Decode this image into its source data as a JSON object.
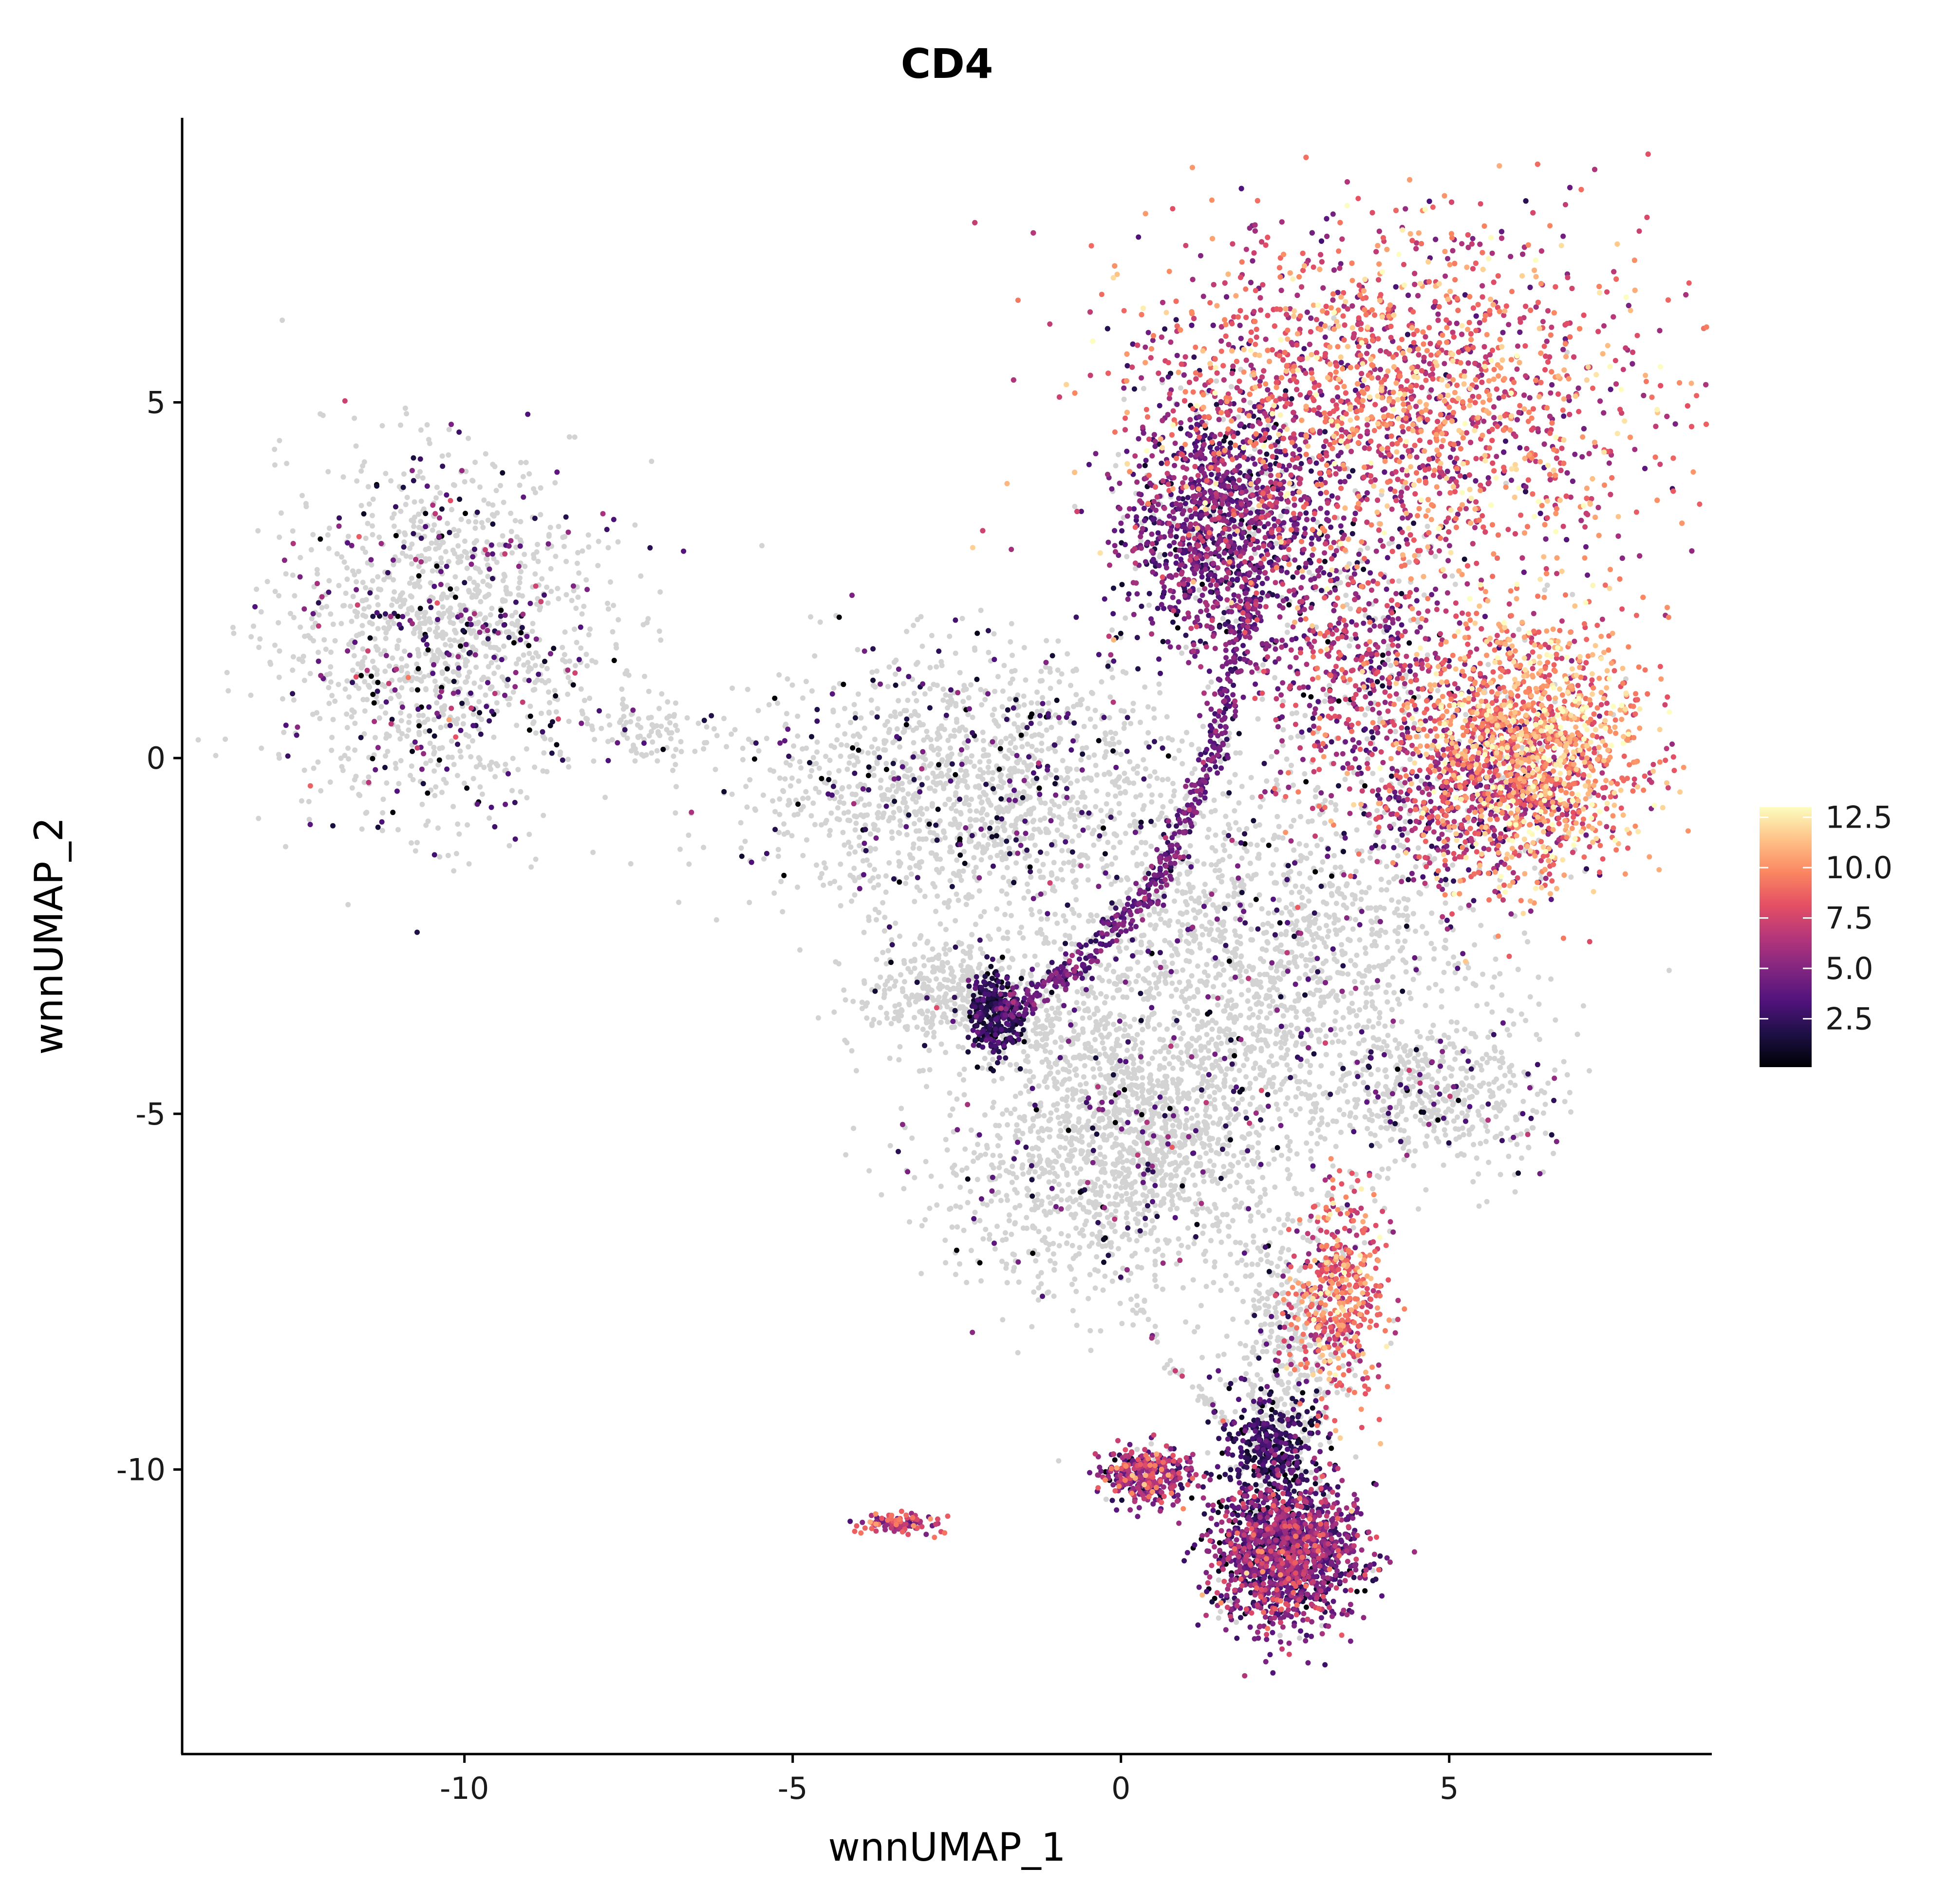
{
  "chart_data": {
    "type": "scatter",
    "title": "CD4",
    "xlabel": "wnnUMAP_1",
    "ylabel": "wnnUMAP_2",
    "xlim": [
      -14.3,
      9.0
    ],
    "ylim": [
      -14.0,
      9.0
    ],
    "x_ticks": [
      -10,
      -5,
      0,
      5
    ],
    "x_tick_labels": [
      "-10",
      "-5",
      "0",
      "5"
    ],
    "y_ticks": [
      -10,
      -5,
      0,
      5
    ],
    "y_tick_labels": [
      "-10",
      "-5",
      "0",
      "5"
    ],
    "grid": false,
    "legend_placement": "right",
    "colorbar": {
      "min": 0.1,
      "max": 13.0,
      "ticks": [
        2.5,
        5.0,
        7.5,
        10.0,
        12.5
      ],
      "tick_labels": [
        "2.5",
        "5.0",
        "7.5",
        "10.0",
        "12.5"
      ],
      "colormap": "magma"
    },
    "colors": {
      "unexpressed": "#d3d3d3",
      "magma_stops": [
        "#000004",
        "#1c1044",
        "#4f127b",
        "#812581",
        "#b5367a",
        "#e55064",
        "#fb8761",
        "#fec287",
        "#fcfdbf"
      ]
    },
    "point_regions": [
      {
        "name": "left island",
        "cx": -10.3,
        "cy": 1.7,
        "sx": 1.25,
        "sy": 1.25,
        "n": 1400,
        "expressed_fraction": 0.22,
        "value_mean": 3.0,
        "value_sd": 2.2
      },
      {
        "name": "left island tail",
        "cx": -7.3,
        "cy": 0.4,
        "sx": 0.55,
        "sy": 0.25,
        "n": 90,
        "expressed_fraction": 0.05,
        "value_mean": 2.0,
        "value_sd": 1.0
      },
      {
        "name": "middle-left cloud",
        "cx": -2.3,
        "cy": -0.4,
        "sx": 1.6,
        "sy": 0.95,
        "n": 1500,
        "expressed_fraction": 0.15,
        "value_mean": 2.5,
        "value_sd": 1.8
      },
      {
        "name": "upper right cluster",
        "cx": 4.2,
        "cy": 5.0,
        "sx": 1.9,
        "sy": 1.2,
        "n": 5200,
        "expressed_fraction": 0.99,
        "value_mean": 8.2,
        "value_sd": 2.4
      },
      {
        "name": "upper left flank",
        "cx": 1.6,
        "cy": 3.3,
        "sx": 0.75,
        "sy": 0.9,
        "n": 1300,
        "expressed_fraction": 0.9,
        "value_mean": 4.2,
        "value_sd": 1.6
      },
      {
        "name": "right lobe",
        "cx": 6.2,
        "cy": 0.2,
        "sx": 0.85,
        "sy": 0.9,
        "n": 1800,
        "expressed_fraction": 0.97,
        "value_mean": 9.6,
        "value_sd": 2.0
      },
      {
        "name": "right lobe rim",
        "cx": 5.4,
        "cy": -0.6,
        "sx": 0.8,
        "sy": 0.6,
        "n": 500,
        "expressed_fraction": 0.9,
        "value_mean": 5.5,
        "value_sd": 2.0
      },
      {
        "name": "mid scatter",
        "cx": 3.7,
        "cy": 1.3,
        "sx": 0.9,
        "sy": 1.0,
        "n": 700,
        "expressed_fraction": 0.8,
        "value_mean": 6.0,
        "value_sd": 2.5
      },
      {
        "name": "center grey",
        "cx": 1.9,
        "cy": -3.1,
        "sx": 1.8,
        "sy": 1.4,
        "n": 2600,
        "expressed_fraction": 0.1,
        "value_mean": 3.0,
        "value_sd": 2.0
      },
      {
        "name": "lower left grey",
        "cx": -0.2,
        "cy": -5.8,
        "sx": 1.3,
        "sy": 0.85,
        "n": 1100,
        "expressed_fraction": 0.07,
        "value_mean": 3.0,
        "value_sd": 2.0
      },
      {
        "name": "lower right grey",
        "cx": 4.9,
        "cy": -4.7,
        "sx": 0.75,
        "sy": 0.5,
        "n": 400,
        "expressed_fraction": 0.15,
        "value_mean": 3.0,
        "value_sd": 2.0
      },
      {
        "name": "left arm grey",
        "cx": -2.6,
        "cy": -3.4,
        "sx": 0.75,
        "sy": 0.35,
        "n": 300,
        "expressed_fraction": 0.02,
        "value_mean": 2.0,
        "value_sd": 1.0
      },
      {
        "name": "arm tip",
        "cx": -1.9,
        "cy": -3.6,
        "sx": 0.22,
        "sy": 0.3,
        "n": 260,
        "expressed_fraction": 0.95,
        "value_mean": 1.8,
        "value_sd": 1.0
      },
      {
        "name": "orange streak",
        "cx": 3.3,
        "cy": -7.6,
        "sx": 0.35,
        "sy": 0.7,
        "n": 500,
        "expressed_fraction": 0.95,
        "value_mean": 8.5,
        "value_sd": 2.0
      },
      {
        "name": "lower grey column",
        "cx": 2.5,
        "cy": -8.3,
        "sx": 0.45,
        "sy": 0.9,
        "n": 400,
        "expressed_fraction": 0.1,
        "value_mean": 3.0,
        "value_sd": 2.0
      },
      {
        "name": "bottom cluster",
        "cx": 2.5,
        "cy": -11.2,
        "sx": 0.55,
        "sy": 0.5,
        "n": 1500,
        "expressed_fraction": 0.96,
        "value_mean": 4.5,
        "value_sd": 2.0
      },
      {
        "name": "bottom cluster top",
        "cx": 2.3,
        "cy": -9.7,
        "sx": 0.35,
        "sy": 0.4,
        "n": 350,
        "expressed_fraction": 0.95,
        "value_mean": 2.2,
        "value_sd": 1.2
      },
      {
        "name": "bottom cluster left",
        "cx": 0.4,
        "cy": -10.1,
        "sx": 0.35,
        "sy": 0.2,
        "n": 350,
        "expressed_fraction": 0.95,
        "value_mean": 5.5,
        "value_sd": 2.2
      },
      {
        "name": "small island",
        "cx": -3.4,
        "cy": -10.75,
        "sx": 0.3,
        "sy": 0.07,
        "n": 100,
        "expressed_fraction": 1.0,
        "value_mean": 6.5,
        "value_sd": 2.0
      }
    ],
    "point_arcs": [
      {
        "name": "purple arc",
        "points": [
          [
            2.0,
            2.5
          ],
          [
            1.4,
            0.0
          ],
          [
            0.6,
            -1.7
          ],
          [
            -0.6,
            -2.9
          ],
          [
            -1.9,
            -3.6
          ]
        ],
        "spread": 0.1,
        "n": 500,
        "expressed_fraction": 1.0,
        "value_mean": 4.0,
        "value_sd": 1.0
      },
      {
        "name": "center-left grey band",
        "points": [
          [
            -3.2,
            -3.0
          ],
          [
            -1.0,
            -3.8
          ],
          [
            0.6,
            -4.9
          ],
          [
            1.4,
            -5.5
          ]
        ],
        "spread": 0.4,
        "n": 500,
        "expressed_fraction": 0.05,
        "value_mean": 3.0,
        "value_sd": 2.0
      },
      {
        "name": "thin diagonal",
        "points": [
          [
            0.2,
            -7.6
          ],
          [
            0.8,
            -8.6
          ],
          [
            1.6,
            -9.3
          ]
        ],
        "spread": 0.05,
        "n": 50,
        "expressed_fraction": 0.1,
        "value_mean": 5.0,
        "value_sd": 2.0
      }
    ]
  }
}
